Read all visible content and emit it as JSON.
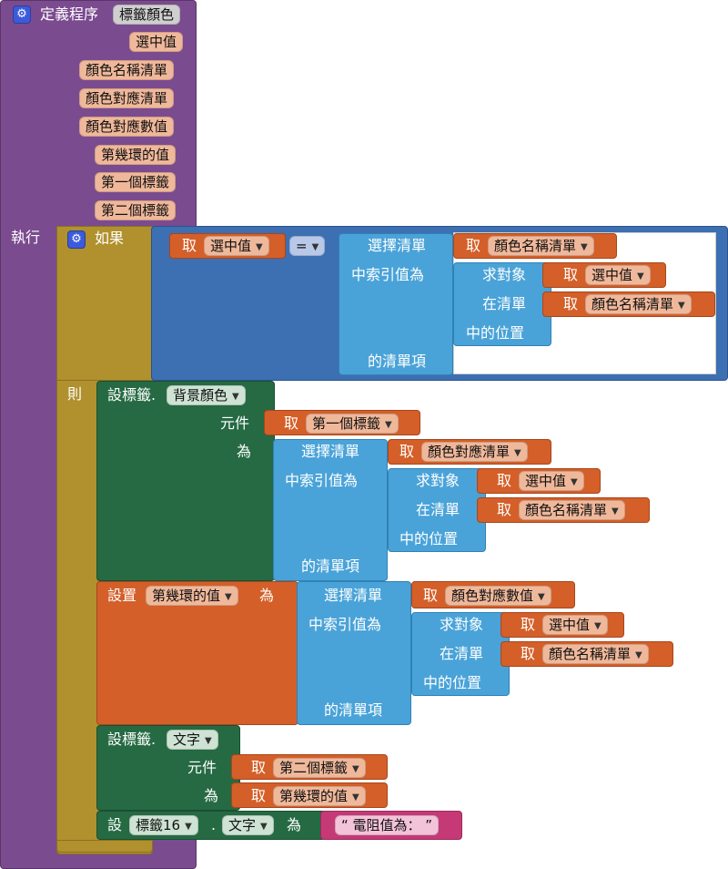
{
  "procedure": {
    "define_label": "定義程序",
    "name": "標籤顏色",
    "params": [
      "選中值",
      "顏色名稱清單",
      "顏色對應清單",
      "顏色對應數值",
      "第幾環的值",
      "第一個標籤",
      "第二個標籤"
    ],
    "do_label": "執行"
  },
  "if_block": {
    "if_label": "如果",
    "then_label": "則",
    "cond_get_label": "取",
    "cond_get_var": "選中值",
    "eq_op": "=",
    "select_list_item": {
      "header": "選擇清單",
      "index_label": "中索引值為",
      "of_list_label": "的清單項",
      "list_get_label": "取",
      "list_var": "顏色名稱清單",
      "index_of": {
        "find_label": "求對象",
        "in_list_label": "在清單",
        "position_label": "中的位置",
        "thing_get": "取",
        "thing_var": "選中值",
        "list_get": "取",
        "list_var": "顏色名稱清單"
      }
    }
  },
  "then_blocks": {
    "set_bg": {
      "label": "設標籤.",
      "property": "背景顏色",
      "component_label": "元件",
      "to_label": "為",
      "component_get": "取",
      "component_var": "第一個標籤",
      "select": {
        "header": "選擇清單",
        "index_label": "中索引值為",
        "of_list_label": "的清單項",
        "list_get": "取",
        "list_var": "顏色對應清單",
        "find_label": "求對象",
        "in_list_label": "在清單",
        "position_label": "中的位置",
        "thing_get": "取",
        "thing_var": "選中值",
        "list2_get": "取",
        "list2_var": "顏色名稱清單"
      }
    },
    "set_var": {
      "label": "設置",
      "var": "第幾環的值",
      "to_label": "為",
      "select": {
        "header": "選擇清單",
        "index_label": "中索引值為",
        "of_list_label": "的清單項",
        "list_get": "取",
        "list_var": "顏色對應數值",
        "find_label": "求對象",
        "in_list_label": "在清單",
        "position_label": "中的位置",
        "thing_get": "取",
        "thing_var": "選中值",
        "list2_get": "取",
        "list2_var": "顏色名稱清單"
      }
    },
    "set_text": {
      "label": "設標籤.",
      "property": "文字",
      "component_label": "元件",
      "to_label": "為",
      "component_get": "取",
      "component_var": "第二個標籤",
      "value_get": "取",
      "value_var": "第幾環的值"
    },
    "set_label16": {
      "label": "設",
      "component": "標籤16",
      "dot": ".",
      "property": "文字",
      "to_label": "為",
      "text_value": "“ 電阻值為： ”"
    }
  },
  "colors": {
    "procedure": "#7b4b8f",
    "control": "#b0912e",
    "logic": "#3d6fb3",
    "lists": "#4aa3d8",
    "variables": "#d45f29",
    "components": "#256a43",
    "text": "#c53a76"
  }
}
